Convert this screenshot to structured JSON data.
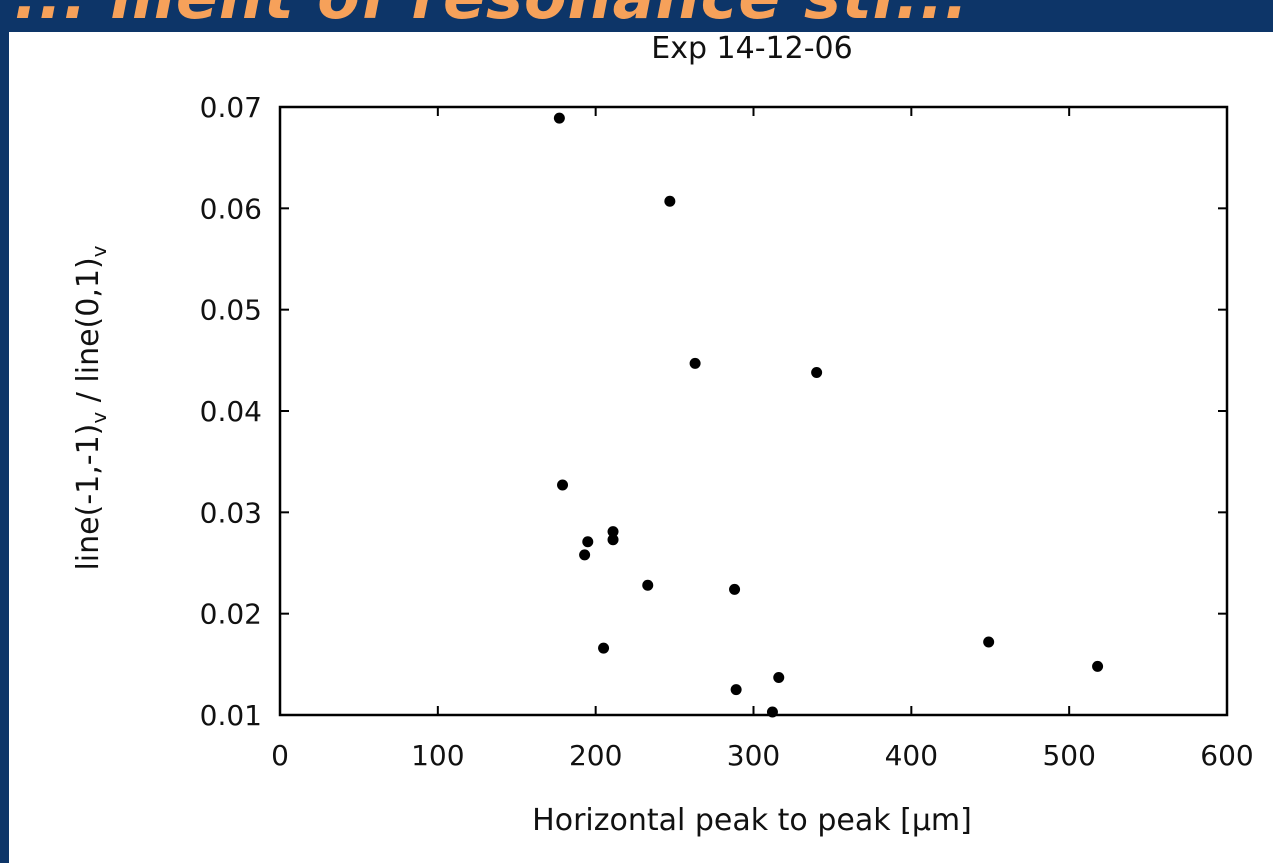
{
  "banner": {
    "text": "... ment of resonance str..."
  },
  "chart_data": {
    "type": "scatter",
    "title": "Exp 14-12-06",
    "xlabel": "Horizontal peak to peak [µm]",
    "ylabel_parts": {
      "a": "line(-1,-1)",
      "a_sub": "v",
      "b": " / line(0,1)",
      "b_sub": "v"
    },
    "xlim": [
      0,
      600
    ],
    "ylim": [
      0.01,
      0.07
    ],
    "x_ticks": [
      0,
      100,
      200,
      300,
      400,
      500,
      600
    ],
    "y_ticks": [
      0.01,
      0.02,
      0.03,
      0.04,
      0.05,
      0.06,
      0.07
    ],
    "x_tick_labels": [
      "0",
      "100",
      "200",
      "300",
      "400",
      "500",
      "600"
    ],
    "y_tick_labels": [
      "0.01",
      "0.02",
      "0.03",
      "0.04",
      "0.05",
      "0.06",
      "0.07"
    ],
    "grid": false,
    "point_color": "#000000",
    "points": [
      {
        "x": 177,
        "y": 0.0689
      },
      {
        "x": 247,
        "y": 0.0607
      },
      {
        "x": 263,
        "y": 0.0447
      },
      {
        "x": 340,
        "y": 0.0438
      },
      {
        "x": 179,
        "y": 0.0327
      },
      {
        "x": 211,
        "y": 0.0281
      },
      {
        "x": 195,
        "y": 0.0271
      },
      {
        "x": 211,
        "y": 0.0273
      },
      {
        "x": 193,
        "y": 0.0258
      },
      {
        "x": 233,
        "y": 0.0228
      },
      {
        "x": 288,
        "y": 0.0224
      },
      {
        "x": 449,
        "y": 0.0172
      },
      {
        "x": 205,
        "y": 0.0166
      },
      {
        "x": 518,
        "y": 0.0148
      },
      {
        "x": 316,
        "y": 0.0137
      },
      {
        "x": 289,
        "y": 0.0125
      },
      {
        "x": 312,
        "y": 0.0103
      }
    ]
  }
}
